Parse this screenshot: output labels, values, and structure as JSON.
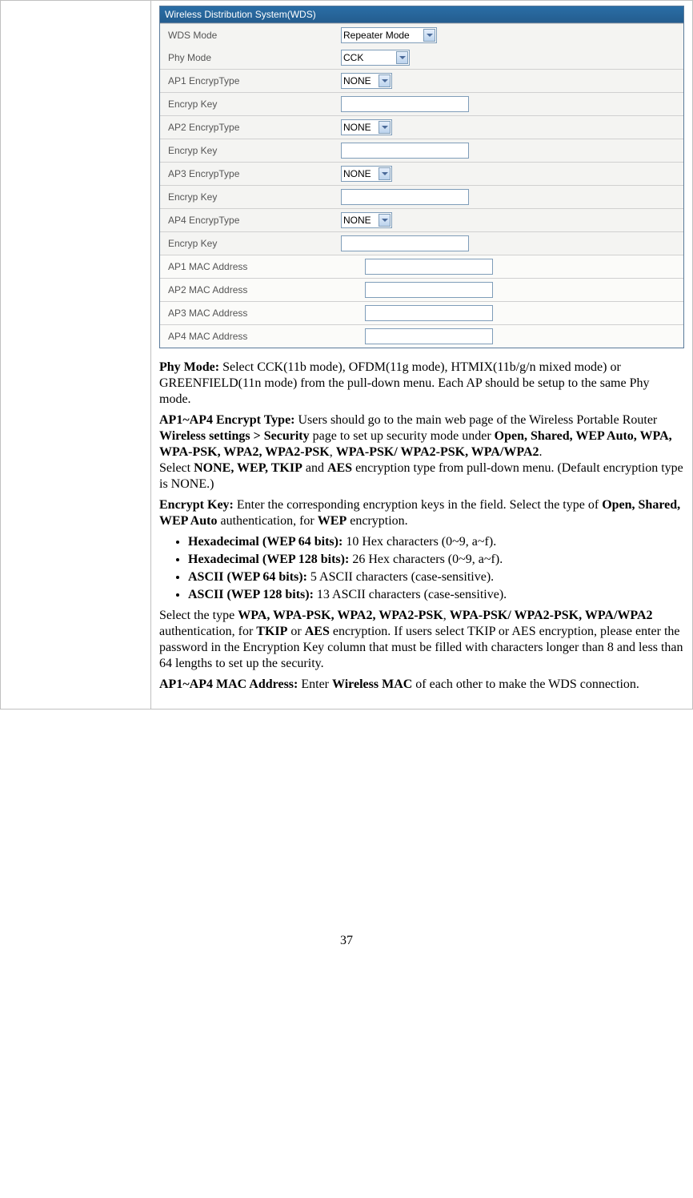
{
  "wds": {
    "header": "Wireless Distribution System(WDS)",
    "rows": [
      {
        "label": "WDS Mode",
        "type": "select",
        "value": "Repeater Mode",
        "cls": "wds-mode-select"
      },
      {
        "label": "Phy Mode",
        "type": "select",
        "value": "CCK",
        "cls": "phy-mode-select"
      },
      {
        "label": "AP1 EncrypType",
        "type": "select",
        "value": "NONE",
        "cls": "encryp-select"
      },
      {
        "label": "Encryp Key",
        "type": "text",
        "value": "",
        "cls": "key-input"
      },
      {
        "label": "AP2 EncrypType",
        "type": "select",
        "value": "NONE",
        "cls": "encryp-select"
      },
      {
        "label": "Encryp Key",
        "type": "text",
        "value": "",
        "cls": "key-input"
      },
      {
        "label": "AP3 EncrypType",
        "type": "select",
        "value": "NONE",
        "cls": "encryp-select"
      },
      {
        "label": "Encryp Key",
        "type": "text",
        "value": "",
        "cls": "key-input"
      },
      {
        "label": "AP4 EncrypType",
        "type": "select",
        "value": "NONE",
        "cls": "encryp-select"
      },
      {
        "label": "Encryp Key",
        "type": "text",
        "value": "",
        "cls": "key-input"
      },
      {
        "label": "AP1 MAC Address",
        "type": "mac",
        "value": "",
        "cls": "mac-input"
      },
      {
        "label": "AP2 MAC Address",
        "type": "mac",
        "value": "",
        "cls": "mac-input"
      },
      {
        "label": "AP3 MAC Address",
        "type": "mac",
        "value": "",
        "cls": "mac-input"
      },
      {
        "label": "AP4 MAC Address",
        "type": "mac",
        "value": "",
        "cls": "mac-input"
      }
    ]
  },
  "doc": {
    "phy_mode_label": "Phy Mode: ",
    "phy_mode_text": "Select CCK(11b mode), OFDM(11g mode), HTMIX(11b/g/n mixed mode) or GREENFIELD(11n mode) from the pull-down menu. Each AP should be setup to the same Phy mode.",
    "encrypt_type_label": "AP1~AP4 Encrypt Type: ",
    "encrypt_type_text1": "Users should go to the main web page of the Wireless Portable Router ",
    "encrypt_type_bold1": "Wireless settings > Security",
    "encrypt_type_text2": " page to set up security mode under ",
    "encrypt_type_bold2": "Open, Shared, WEP Auto, WPA, WPA-PSK, WPA2, WPA2-PSK",
    "encrypt_type_text3": ", ",
    "encrypt_type_bold3": "WPA-PSK/ WPA2-PSK, WPA/WPA2",
    "encrypt_type_text4": ".",
    "encrypt_type_text5": "Select ",
    "encrypt_type_bold4": "NONE, WEP, TKIP",
    "encrypt_type_text6": " and ",
    "encrypt_type_bold5": "AES",
    "encrypt_type_text7": "  encryption type from pull-down menu. (Default encryption type is NONE.)",
    "encrypt_key_label": "Encrypt Key: ",
    "encrypt_key_text1": "Enter the corresponding encryption keys in the field. Select the type of ",
    "encrypt_key_bold1": "Open, Shared, WEP Auto",
    "encrypt_key_text2": " authentication, for ",
    "encrypt_key_bold2": "WEP",
    "encrypt_key_text3": " encryption.",
    "bullets": [
      {
        "bold": "Hexadecimal (WEP 64 bits): ",
        "text": "10 Hex characters (0~9, a~f)."
      },
      {
        "bold": "Hexadecimal (WEP 128 bits): ",
        "text": "26 Hex characters (0~9, a~f)."
      },
      {
        "bold": "ASCII (WEP 64 bits): ",
        "text": "5 ASCII characters (case-sensitive)."
      },
      {
        "bold": "ASCII (WEP 128 bits): ",
        "text": "13 ASCII characters (case-sensitive)."
      }
    ],
    "wpa_text1": "Select the type ",
    "wpa_bold1": "WPA, WPA-PSK, WPA2, WPA2-PSK",
    "wpa_text2": ", ",
    "wpa_bold2": "WPA-PSK/ WPA2-PSK, WPA/WPA2",
    "wpa_text3": " authentication, for  ",
    "wpa_bold3": "TKIP",
    "wpa_text4": " or ",
    "wpa_bold4": "AES",
    "wpa_text5": " encryption. If users select TKIP or AES encryption, please enter the password in the Encryption Key column that must be filled with characters longer than 8 and less than 64 lengths to set up the security.",
    "mac_label": "AP1~AP4 MAC Address: ",
    "mac_text1": "Enter ",
    "mac_bold1": "Wireless MAC",
    "mac_text2": " of each other to make the WDS connection."
  },
  "page_number": "37"
}
